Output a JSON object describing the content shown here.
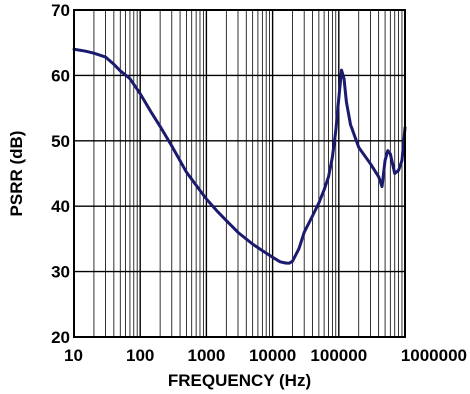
{
  "chart_data": {
    "type": "line",
    "title": "",
    "xlabel": "FREQUENCY (Hz)",
    "ylabel": "PSRR (dB)",
    "x_scale": "log",
    "xlim": [
      10,
      1000000
    ],
    "ylim": [
      20,
      70
    ],
    "grid": true,
    "x_ticks": [
      10,
      100,
      1000,
      10000,
      100000,
      1000000
    ],
    "x_tick_labels": [
      "10",
      "100",
      "1000",
      "10000",
      "100000",
      "1000000"
    ],
    "y_ticks": [
      20,
      30,
      40,
      50,
      60,
      70
    ],
    "y_tick_labels": [
      "20",
      "30",
      "40",
      "50",
      "60",
      "70"
    ],
    "line_color": "#1a1a6e",
    "series": [
      {
        "x": [
          10,
          15,
          20,
          30,
          40,
          50,
          70,
          100,
          150,
          200,
          300,
          500,
          700,
          1000,
          1500,
          2000,
          3000,
          5000,
          7000,
          10000,
          13000,
          16000,
          18000,
          20000,
          25000,
          30000,
          40000,
          50000,
          60000,
          70000,
          80000,
          90000,
          100000,
          110000,
          120000,
          130000,
          150000,
          200000,
          300000,
          400000,
          450000,
          500000,
          550000,
          600000,
          700000,
          800000,
          900000,
          1000000
        ],
        "y": [
          64,
          63.7,
          63.4,
          62.8,
          61.7,
          60.7,
          59.5,
          57.2,
          54.2,
          52.2,
          49.2,
          45.2,
          43.2,
          41.1,
          39.1,
          37.8,
          36.0,
          34.2,
          33.2,
          32.2,
          31.5,
          31.3,
          31.3,
          31.6,
          33.5,
          36.0,
          38.5,
          40.5,
          42.5,
          44.5,
          47.5,
          51.5,
          56.5,
          60.8,
          59.5,
          56.0,
          52.5,
          49.0,
          46.5,
          44.5,
          43.0,
          47.0,
          48.5,
          48.0,
          45.0,
          45.5,
          47.0,
          52.0
        ]
      }
    ]
  }
}
